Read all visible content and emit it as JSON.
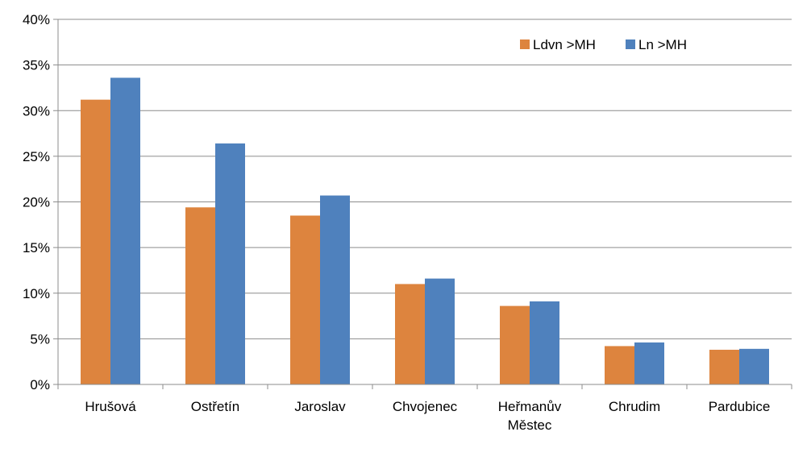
{
  "chart_data": {
    "type": "bar",
    "categories": [
      [
        "Hrušová"
      ],
      [
        "Ostřetín"
      ],
      [
        "Jaroslav"
      ],
      [
        "Chvojenec"
      ],
      [
        "Heřmanův",
        "Městec"
      ],
      [
        "Chrudim"
      ],
      [
        "Pardubice"
      ]
    ],
    "series": [
      {
        "name": "Ldvn >MH",
        "color": "#dd843e",
        "values": [
          31.2,
          19.4,
          18.5,
          11.0,
          8.6,
          4.2,
          3.8
        ]
      },
      {
        "name": "Ln >MH",
        "color": "#4f81bd",
        "values": [
          33.6,
          26.4,
          20.7,
          11.6,
          9.1,
          4.6,
          3.9
        ]
      }
    ],
    "yticks": [
      "0%",
      "5%",
      "10%",
      "15%",
      "20%",
      "25%",
      "30%",
      "35%",
      "40%"
    ],
    "ylim": [
      0,
      40
    ],
    "title": "",
    "xlabel": "",
    "ylabel": "",
    "grid": true,
    "legend_position": "top-right"
  }
}
